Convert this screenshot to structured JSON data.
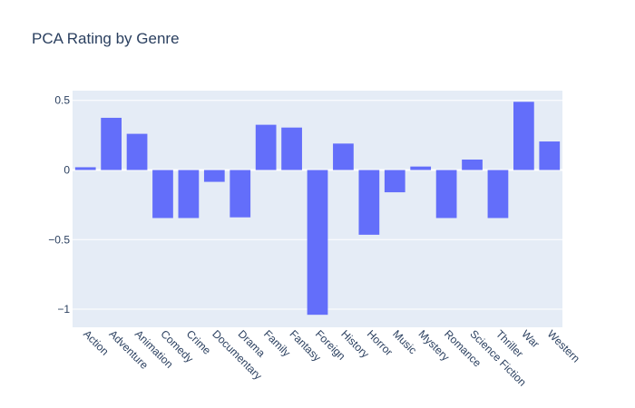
{
  "chart_data": {
    "type": "bar",
    "title": "PCA Rating by Genre",
    "categories": [
      "Action",
      "Adventure",
      "Animation",
      "Comedy",
      "Crime",
      "Documentary",
      "Drama",
      "Family",
      "Fantasy",
      "Foreign",
      "History",
      "Horror",
      "Music",
      "Mystery",
      "Romance",
      "Science Fiction",
      "Thriller",
      "War",
      "Western"
    ],
    "values": [
      0.02,
      0.375,
      0.26,
      -0.345,
      -0.345,
      -0.085,
      -0.34,
      0.325,
      0.305,
      -1.04,
      0.19,
      -0.465,
      -0.16,
      0.025,
      -0.345,
      0.075,
      -0.345,
      0.49,
      0.205
    ],
    "ylim": [
      -1.13,
      0.57
    ],
    "yticks": [
      0.5,
      0,
      -0.5,
      -1
    ],
    "ytick_labels": [
      "0.5",
      "0",
      "−0.5",
      "−1"
    ],
    "xlabel": "",
    "ylabel": "",
    "grid": true,
    "colors": {
      "bar": "#636efa",
      "plot_bg": "#e5ecf6",
      "grid": "#ffffff",
      "text": "#2a3f5f"
    }
  }
}
